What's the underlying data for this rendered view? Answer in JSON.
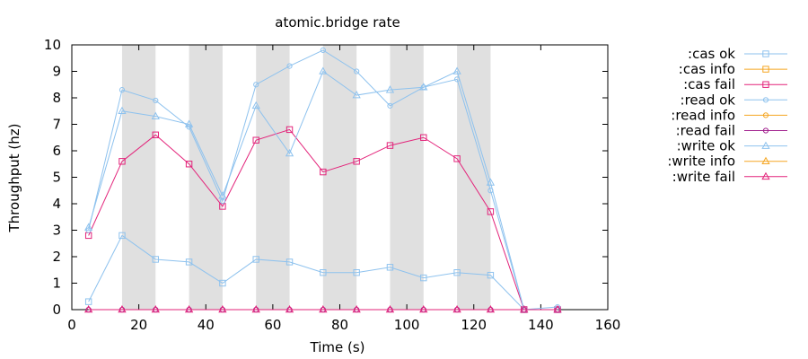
{
  "chart_data": {
    "type": "line",
    "title": "atomic.bridge rate",
    "xlabel": "Time (s)",
    "ylabel": "Throughput (hz)",
    "xlim": [
      0,
      160
    ],
    "ylim": [
      0,
      10
    ],
    "xticks": [
      0,
      20,
      40,
      60,
      80,
      100,
      120,
      140,
      160
    ],
    "yticks": [
      0,
      1,
      2,
      3,
      4,
      5,
      6,
      7,
      8,
      9,
      10
    ],
    "grid": false,
    "legend_position": "right",
    "shaded_intervals": [
      [
        15,
        25
      ],
      [
        35,
        45
      ],
      [
        55,
        65
      ],
      [
        75,
        85
      ],
      [
        95,
        105
      ],
      [
        115,
        125
      ]
    ],
    "shade_color": "#e0e0e0",
    "series": [
      {
        "name": ":cas ok",
        "color": "#8ec2ee",
        "marker": "square",
        "x": [
          5,
          15,
          25,
          35,
          45,
          55,
          65,
          75,
          85,
          95,
          105,
          115,
          125,
          135,
          145
        ],
        "y": [
          0.3,
          2.8,
          1.9,
          1.8,
          1.0,
          1.9,
          1.8,
          1.4,
          1.4,
          1.6,
          1.2,
          1.4,
          1.3,
          0,
          0
        ]
      },
      {
        "name": ":cas info",
        "color": "#f5a623",
        "marker": "square",
        "x": [],
        "y": []
      },
      {
        "name": ":cas fail",
        "color": "#e3237a",
        "marker": "square",
        "x": [
          5,
          15,
          25,
          35,
          45,
          55,
          65,
          75,
          85,
          95,
          105,
          115,
          125,
          135,
          145
        ],
        "y": [
          2.8,
          5.6,
          6.6,
          5.5,
          3.9,
          6.4,
          6.8,
          5.2,
          5.6,
          6.2,
          6.5,
          5.7,
          3.7,
          0,
          0
        ]
      },
      {
        "name": ":read ok",
        "color": "#8ec2ee",
        "marker": "circle",
        "x": [
          5,
          15,
          25,
          35,
          45,
          55,
          65,
          75,
          85,
          95,
          105,
          115,
          125,
          135,
          145
        ],
        "y": [
          3.0,
          8.3,
          7.9,
          6.9,
          4.1,
          8.5,
          9.2,
          9.8,
          9.0,
          7.7,
          8.4,
          8.7,
          4.5,
          0,
          0.1
        ]
      },
      {
        "name": ":read info",
        "color": "#f5a623",
        "marker": "circle",
        "x": [],
        "y": []
      },
      {
        "name": ":read fail",
        "color": "#a2238f",
        "marker": "circle",
        "x": [
          5,
          15,
          25,
          35,
          45,
          55,
          65,
          75,
          85,
          95,
          105,
          115,
          125,
          135,
          145
        ],
        "y": [
          0,
          0,
          0,
          0,
          0,
          0,
          0,
          0,
          0,
          0,
          0,
          0,
          0,
          0,
          0
        ]
      },
      {
        "name": ":write ok",
        "color": "#8ec2ee",
        "marker": "triangle",
        "x": [
          5,
          15,
          25,
          35,
          45,
          55,
          65,
          75,
          85,
          95,
          105,
          115,
          125,
          135,
          145
        ],
        "y": [
          3.1,
          7.5,
          7.3,
          7.0,
          4.3,
          7.7,
          5.9,
          9.0,
          8.1,
          8.3,
          8.4,
          9.0,
          4.8,
          0,
          0
        ]
      },
      {
        "name": ":write info",
        "color": "#f5a623",
        "marker": "triangle",
        "x": [],
        "y": []
      },
      {
        "name": ":write fail",
        "color": "#e3237a",
        "marker": "triangle",
        "x": [
          5,
          15,
          25,
          35,
          45,
          55,
          65,
          75,
          85,
          95,
          105,
          115,
          125,
          135,
          145
        ],
        "y": [
          0,
          0,
          0,
          0,
          0,
          0,
          0,
          0,
          0,
          0,
          0,
          0,
          0,
          0,
          0
        ]
      }
    ]
  }
}
